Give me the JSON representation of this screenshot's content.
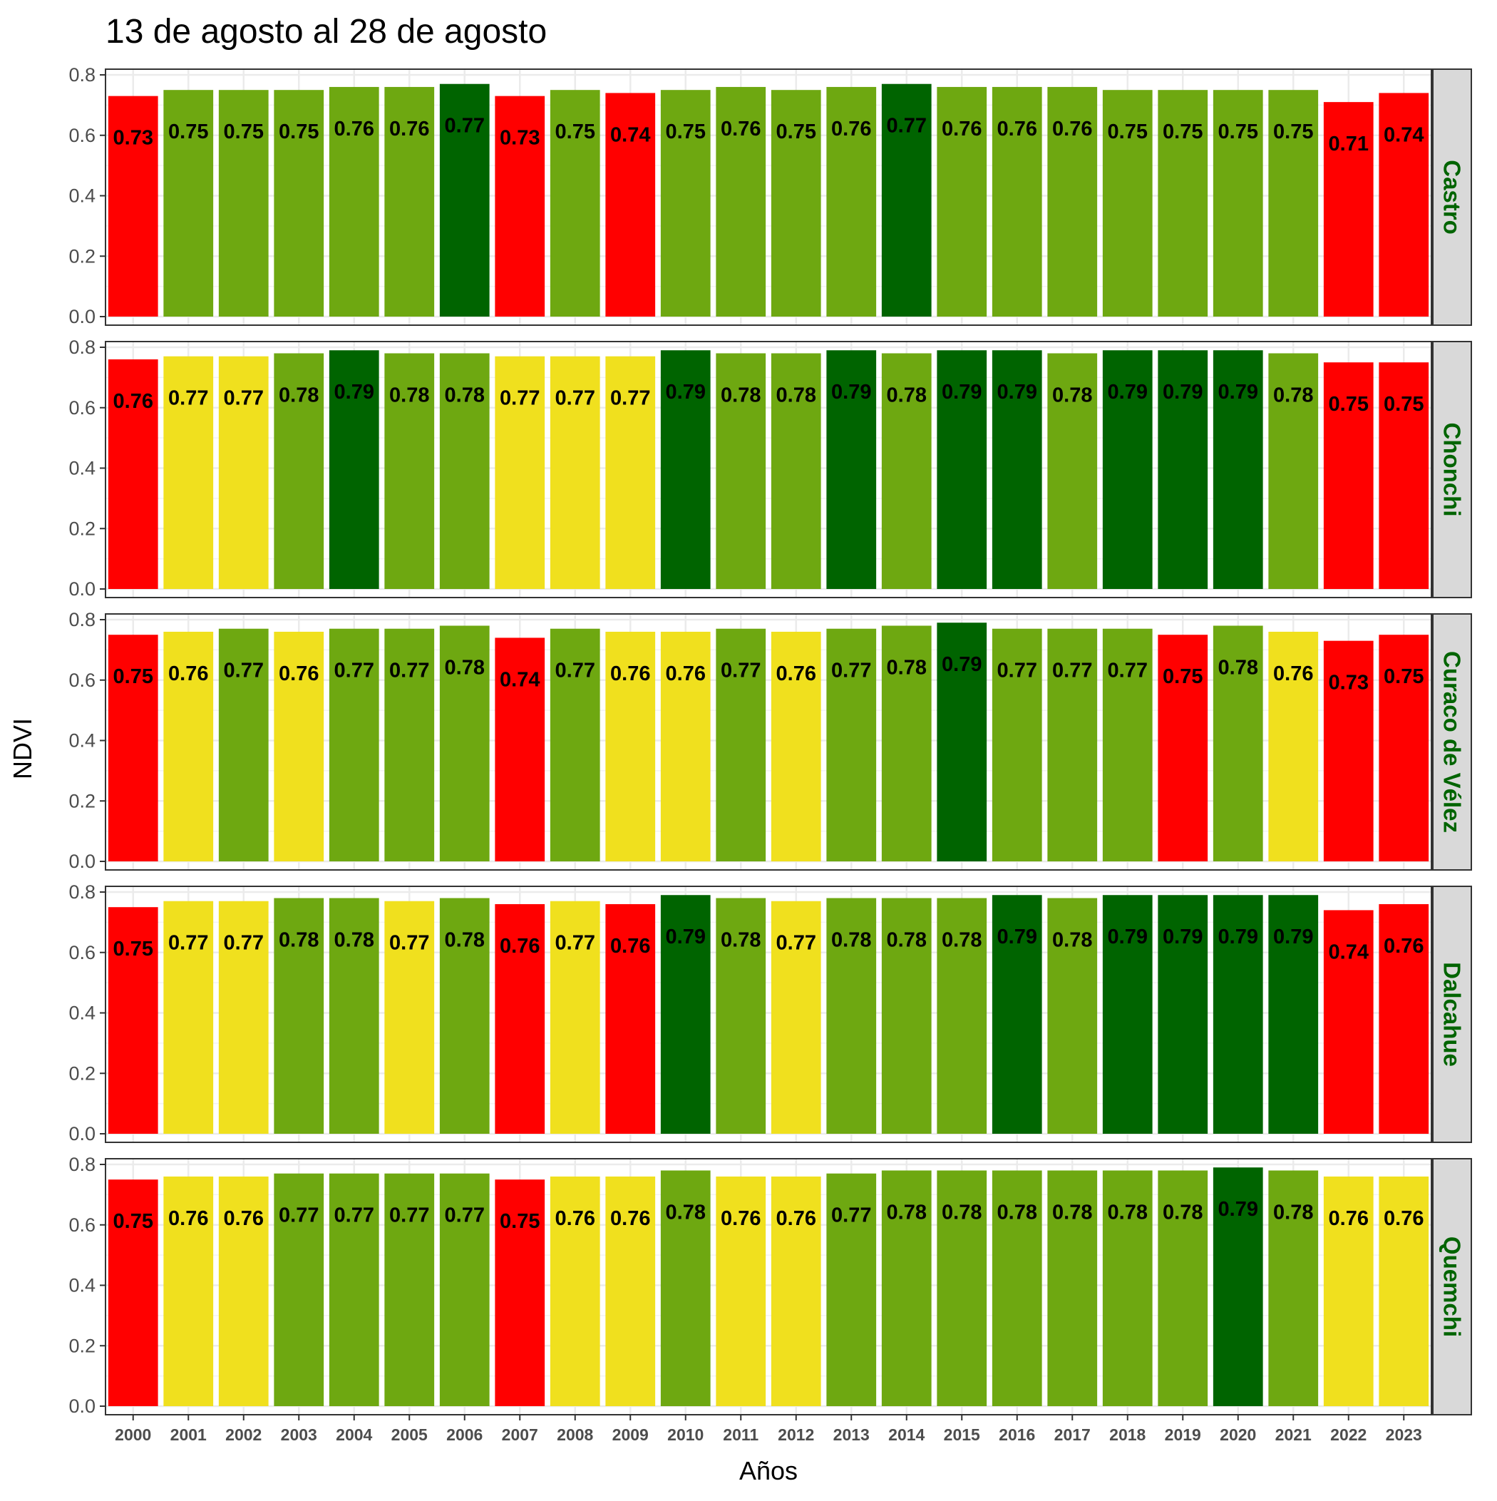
{
  "chart_data": {
    "type": "bar",
    "title": "13 de agosto al 28 de agosto",
    "xlabel": "Años",
    "ylabel": "NDVI",
    "ylim": [
      0,
      0.8
    ],
    "yticks": [
      "0.0",
      "0.2",
      "0.4",
      "0.6",
      "0.8"
    ],
    "grid": true,
    "legend": "none",
    "facet_layout": "stacked rows, strip labels on right",
    "categories": [
      "2000",
      "2001",
      "2002",
      "2003",
      "2004",
      "2005",
      "2006",
      "2007",
      "2008",
      "2009",
      "2010",
      "2011",
      "2012",
      "2013",
      "2014",
      "2015",
      "2016",
      "2017",
      "2018",
      "2019",
      "2020",
      "2021",
      "2022",
      "2023"
    ],
    "colors": {
      "red": "#ff0000",
      "yellow": "#f0e01e",
      "green": "#6ea811",
      "darkgreen": "#006400"
    },
    "panels": [
      {
        "name": "Castro",
        "values": [
          0.73,
          0.75,
          0.75,
          0.75,
          0.76,
          0.76,
          0.77,
          0.73,
          0.75,
          0.74,
          0.75,
          0.76,
          0.75,
          0.76,
          0.77,
          0.76,
          0.76,
          0.76,
          0.75,
          0.75,
          0.75,
          0.75,
          0.71,
          0.74
        ],
        "labels": [
          "0.73",
          "0.75",
          "0.75",
          "0.75",
          "0.76",
          "0.76",
          "0.77",
          "0.73",
          "0.75",
          "0.74",
          "0.75",
          "0.76",
          "0.75",
          "0.76",
          "0.77",
          "0.76",
          "0.76",
          "0.76",
          "0.75",
          "0.75",
          "0.75",
          "0.75",
          "0.71",
          "0.74"
        ],
        "bar_colors": [
          "red",
          "green",
          "green",
          "green",
          "green",
          "green",
          "darkgreen",
          "red",
          "green",
          "red",
          "green",
          "green",
          "green",
          "green",
          "darkgreen",
          "green",
          "green",
          "green",
          "green",
          "green",
          "green",
          "green",
          "red",
          "red"
        ]
      },
      {
        "name": "Chonchi",
        "values": [
          0.76,
          0.77,
          0.77,
          0.78,
          0.79,
          0.78,
          0.78,
          0.77,
          0.77,
          0.77,
          0.79,
          0.78,
          0.78,
          0.79,
          0.78,
          0.79,
          0.79,
          0.78,
          0.79,
          0.79,
          0.79,
          0.78,
          0.75,
          0.75
        ],
        "labels": [
          "0.76",
          "0.77",
          "0.77",
          "0.78",
          "0.79",
          "0.78",
          "0.78",
          "0.77",
          "0.77",
          "0.77",
          "0.79",
          "0.78",
          "0.78",
          "0.79",
          "0.78",
          "0.79",
          "0.79",
          "0.78",
          "0.79",
          "0.79",
          "0.79",
          "0.78",
          "0.75",
          "0.75"
        ],
        "bar_colors": [
          "red",
          "yellow",
          "yellow",
          "green",
          "darkgreen",
          "green",
          "green",
          "yellow",
          "yellow",
          "yellow",
          "darkgreen",
          "green",
          "green",
          "darkgreen",
          "green",
          "darkgreen",
          "darkgreen",
          "green",
          "darkgreen",
          "darkgreen",
          "darkgreen",
          "green",
          "red",
          "red"
        ]
      },
      {
        "name": "Curaco de Vélez",
        "values": [
          0.75,
          0.76,
          0.77,
          0.76,
          0.77,
          0.77,
          0.78,
          0.74,
          0.77,
          0.76,
          0.76,
          0.77,
          0.76,
          0.77,
          0.78,
          0.79,
          0.77,
          0.77,
          0.77,
          0.75,
          0.78,
          0.76,
          0.73,
          0.75
        ],
        "labels": [
          "0.75",
          "0.76",
          "0.77",
          "0.76",
          "0.77",
          "0.77",
          "0.78",
          "0.74",
          "0.77",
          "0.76",
          "0.76",
          "0.77",
          "0.76",
          "0.77",
          "0.78",
          "0.79",
          "0.77",
          "0.77",
          "0.77",
          "0.75",
          "0.78",
          "0.76",
          "0.73",
          "0.75"
        ],
        "bar_colors": [
          "red",
          "yellow",
          "green",
          "yellow",
          "green",
          "green",
          "green",
          "red",
          "green",
          "yellow",
          "yellow",
          "green",
          "yellow",
          "green",
          "green",
          "darkgreen",
          "green",
          "green",
          "green",
          "red",
          "green",
          "yellow",
          "red",
          "red"
        ]
      },
      {
        "name": "Dalcahue",
        "values": [
          0.75,
          0.77,
          0.77,
          0.78,
          0.78,
          0.77,
          0.78,
          0.76,
          0.77,
          0.76,
          0.79,
          0.78,
          0.77,
          0.78,
          0.78,
          0.78,
          0.79,
          0.78,
          0.79,
          0.79,
          0.79,
          0.79,
          0.74,
          0.76
        ],
        "labels": [
          "0.75",
          "0.77",
          "0.77",
          "0.78",
          "0.78",
          "0.77",
          "0.78",
          "0.76",
          "0.77",
          "0.76",
          "0.79",
          "0.78",
          "0.77",
          "0.78",
          "0.78",
          "0.78",
          "0.79",
          "0.78",
          "0.79",
          "0.79",
          "0.79",
          "0.79",
          "0.74",
          "0.76"
        ],
        "bar_colors": [
          "red",
          "yellow",
          "yellow",
          "green",
          "green",
          "yellow",
          "green",
          "red",
          "yellow",
          "red",
          "darkgreen",
          "green",
          "yellow",
          "green",
          "green",
          "green",
          "darkgreen",
          "green",
          "darkgreen",
          "darkgreen",
          "darkgreen",
          "darkgreen",
          "red",
          "red"
        ]
      },
      {
        "name": "Quemchi",
        "values": [
          0.75,
          0.76,
          0.76,
          0.77,
          0.77,
          0.77,
          0.77,
          0.75,
          0.76,
          0.76,
          0.78,
          0.76,
          0.76,
          0.77,
          0.78,
          0.78,
          0.78,
          0.78,
          0.78,
          0.78,
          0.79,
          0.78,
          0.76,
          0.76
        ],
        "labels": [
          "0.75",
          "0.76",
          "0.76",
          "0.77",
          "0.77",
          "0.77",
          "0.77",
          "0.75",
          "0.76",
          "0.76",
          "0.78",
          "0.76",
          "0.76",
          "0.77",
          "0.78",
          "0.78",
          "0.78",
          "0.78",
          "0.78",
          "0.78",
          "0.79",
          "0.78",
          "0.76",
          "0.76"
        ],
        "bar_colors": [
          "red",
          "yellow",
          "yellow",
          "green",
          "green",
          "green",
          "green",
          "red",
          "yellow",
          "yellow",
          "green",
          "yellow",
          "yellow",
          "green",
          "green",
          "green",
          "green",
          "green",
          "green",
          "green",
          "darkgreen",
          "green",
          "yellow",
          "yellow"
        ]
      }
    ]
  }
}
